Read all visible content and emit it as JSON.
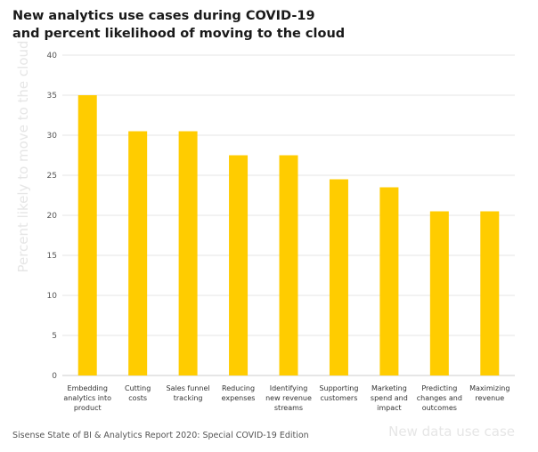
{
  "title_lines": [
    "New analytics use cases during COVID-19",
    "and percent likelihood of moving to the cloud"
  ],
  "source": "Sisense State of BI & Analytics Report 2020: Special COVID-19 Edition",
  "colors": {
    "bar": "#FFCC00",
    "grid": "#e5e5e5",
    "axis_title": "#e6e6e6"
  },
  "chart_data": {
    "type": "bar",
    "xlabel": "New data use case",
    "ylabel": "Percent likely to move to the cloud",
    "ylim": [
      0,
      40
    ],
    "yticks": [
      0,
      5,
      10,
      15,
      20,
      25,
      30,
      35,
      40
    ],
    "grid": true,
    "categories": [
      [
        "Embedding",
        "analytics into",
        "product"
      ],
      [
        "Cutting",
        "costs"
      ],
      [
        "Sales funnel",
        "tracking"
      ],
      [
        "Reducing",
        "expenses"
      ],
      [
        "Identifying",
        "new revenue",
        "streams"
      ],
      [
        "Supporting",
        "customers"
      ],
      [
        "Marketing",
        "spend and",
        "impact"
      ],
      [
        "Predicting",
        "changes and",
        "outcomes"
      ],
      [
        "Maximizing",
        "revenue"
      ]
    ],
    "values": [
      35,
      30.5,
      30.5,
      27.5,
      27.5,
      24.5,
      23.5,
      20.5,
      20.5
    ]
  }
}
